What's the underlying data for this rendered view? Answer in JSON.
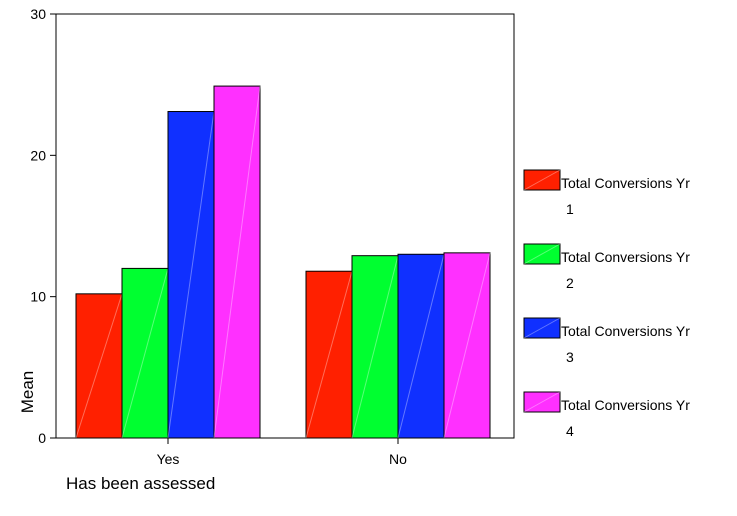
{
  "chart_data": {
    "type": "bar",
    "categories": [
      "Yes",
      "No"
    ],
    "series": [
      {
        "name": "Total Conversions Yr 1",
        "name_line1": "Total Conversions Yr",
        "name_line2": "1",
        "color": "#ff2000",
        "values": [
          10.2,
          11.8
        ]
      },
      {
        "name": "Total Conversions Yr 2",
        "name_line1": "Total Conversions Yr",
        "name_line2": "2",
        "color": "#00ff30",
        "values": [
          12.0,
          12.9
        ]
      },
      {
        "name": "Total Conversions Yr 3",
        "name_line1": "Total Conversions Yr",
        "name_line2": "3",
        "color": "#1030ff",
        "values": [
          23.1,
          13.0
        ]
      },
      {
        "name": "Total Conversions Yr 4",
        "name_line1": "Total Conversions Yr",
        "name_line2": "4",
        "color": "#ff30ff",
        "values": [
          24.9,
          13.1
        ]
      }
    ],
    "xlabel": "Has been assessed",
    "ylabel": "Mean",
    "ylim": [
      0,
      30
    ],
    "yticks": [
      0,
      10,
      20,
      30
    ],
    "grid": false,
    "legend_position": "right"
  }
}
